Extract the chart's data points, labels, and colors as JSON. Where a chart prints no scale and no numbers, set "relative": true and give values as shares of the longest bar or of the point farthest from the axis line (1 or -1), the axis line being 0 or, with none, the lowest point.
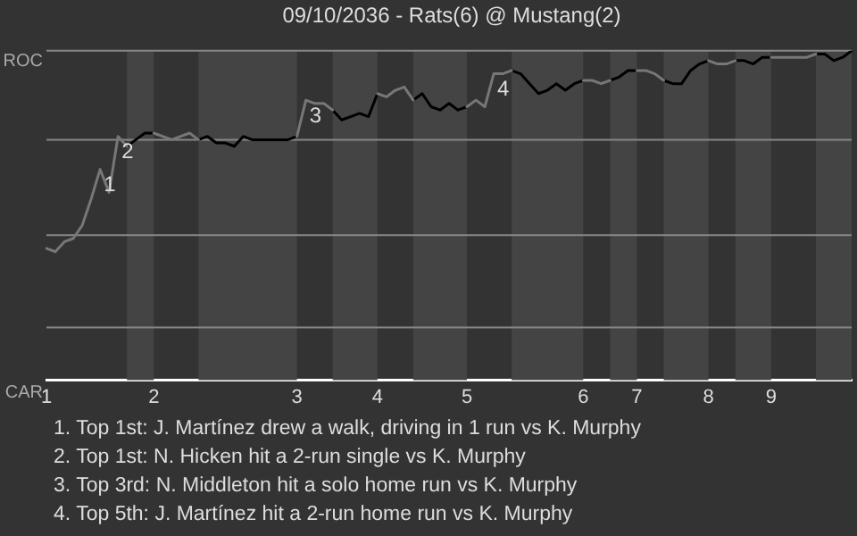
{
  "chart_data": {
    "type": "line",
    "title": "09/10/2036 - Rats(6) @ Mustang(2)",
    "relative": true,
    "categories": [
      "1",
      null,
      null,
      null,
      null,
      null,
      null,
      null,
      null,
      null,
      null,
      null,
      "2",
      null,
      null,
      null,
      null,
      null,
      null,
      null,
      null,
      null,
      null,
      null,
      null,
      null,
      null,
      null,
      "3",
      null,
      null,
      null,
      null,
      null,
      null,
      null,
      null,
      "4",
      null,
      null,
      null,
      null,
      null,
      null,
      null,
      null,
      null,
      "5",
      null,
      null,
      null,
      null,
      null,
      null,
      null,
      null,
      null,
      null,
      null,
      null,
      "6",
      null,
      null,
      null,
      null,
      null,
      "7",
      null,
      null,
      null,
      null,
      null,
      null,
      null,
      "8",
      null,
      null,
      null,
      null,
      null,
      null,
      "9",
      null,
      null,
      null,
      null,
      null,
      null,
      null,
      null,
      null
    ],
    "legend": false,
    "marker": "none",
    "line_style": "solid",
    "ref_lines": [
      {
        "axis": "y",
        "value": 0.16,
        "color": "#888888"
      },
      {
        "axis": "y",
        "value": 0.44,
        "color": "#888888"
      },
      {
        "axis": "y",
        "value": 0.73,
        "color": "#888888"
      },
      {
        "axis": "y",
        "value": 1,
        "color": "#888888"
      }
    ],
    "series": [
      {
        "color": "#777777",
        "values": [
          0.4,
          0.39,
          0.42,
          0.43,
          0.47,
          0.55,
          0.64,
          0.57,
          0.74,
          0.71,
          null,
          null,
          0.75,
          0.74,
          0.73,
          0.74,
          0.75,
          0.73,
          null,
          null,
          null,
          null,
          null,
          null,
          null,
          null,
          null,
          null,
          0.74,
          0.85,
          0.84,
          0.84,
          0.82,
          null,
          null,
          null,
          null,
          0.87,
          0.86,
          0.88,
          0.89,
          0.85,
          null,
          null,
          null,
          null,
          null,
          0.83,
          0.85,
          0.83,
          0.93,
          0.93,
          0.94,
          null,
          null,
          null,
          null,
          null,
          null,
          null,
          0.91,
          0.91,
          0.9,
          0.91,
          null,
          null,
          0.94,
          0.94,
          0.93,
          0.91,
          null,
          null,
          null,
          null,
          0.97,
          0.96,
          0.96,
          0.97,
          null,
          null,
          null,
          0.98,
          0.98,
          0.98,
          0.98,
          0.98,
          0.99,
          null,
          null,
          null,
          null
        ],
        "name": null
      },
      {
        "color": "#000000",
        "values": [
          null,
          null,
          null,
          null,
          null,
          null,
          null,
          null,
          null,
          0.71,
          0.73,
          0.75,
          0.75,
          null,
          null,
          null,
          null,
          0.73,
          0.74,
          0.72,
          0.72,
          0.71,
          0.74,
          0.73,
          0.73,
          0.73,
          0.73,
          0.73,
          0.74,
          null,
          null,
          null,
          0.82,
          0.79,
          0.8,
          0.81,
          0.8,
          0.87,
          null,
          null,
          null,
          0.85,
          0.87,
          0.83,
          0.82,
          0.84,
          0.82,
          0.83,
          null,
          null,
          null,
          null,
          0.94,
          0.93,
          0.9,
          0.87,
          0.88,
          0.9,
          0.88,
          0.9,
          0.91,
          null,
          null,
          0.91,
          0.92,
          0.94,
          0.94,
          null,
          null,
          0.91,
          0.9,
          0.9,
          0.94,
          0.96,
          0.97,
          null,
          null,
          0.97,
          0.97,
          0.96,
          0.98,
          0.98,
          null,
          null,
          null,
          null,
          0.99,
          0.99,
          0.97,
          0.98,
          1
        ]
      }
    ],
    "annotations": [
      "ROC",
      "CAR",
      {
        "text": "1",
        "y": 0.64
      },
      {
        "text": "2",
        "y": 0.74
      },
      {
        "text": "3",
        "y": 0.85
      },
      {
        "text": "4",
        "y": 0.93
      },
      "1. Top 1st: J. Martínez drew a walk, driving in 1 run vs K. Murphy",
      "2. Top 1st: N. Hicken hit a 2-run single vs K. Murphy",
      "3. Top 3rd: N. Middleton hit a solo home run vs K. Murphy",
      "4. Top 5th: J. Martínez hit a 2-run home run vs K. Murphy"
    ]
  }
}
